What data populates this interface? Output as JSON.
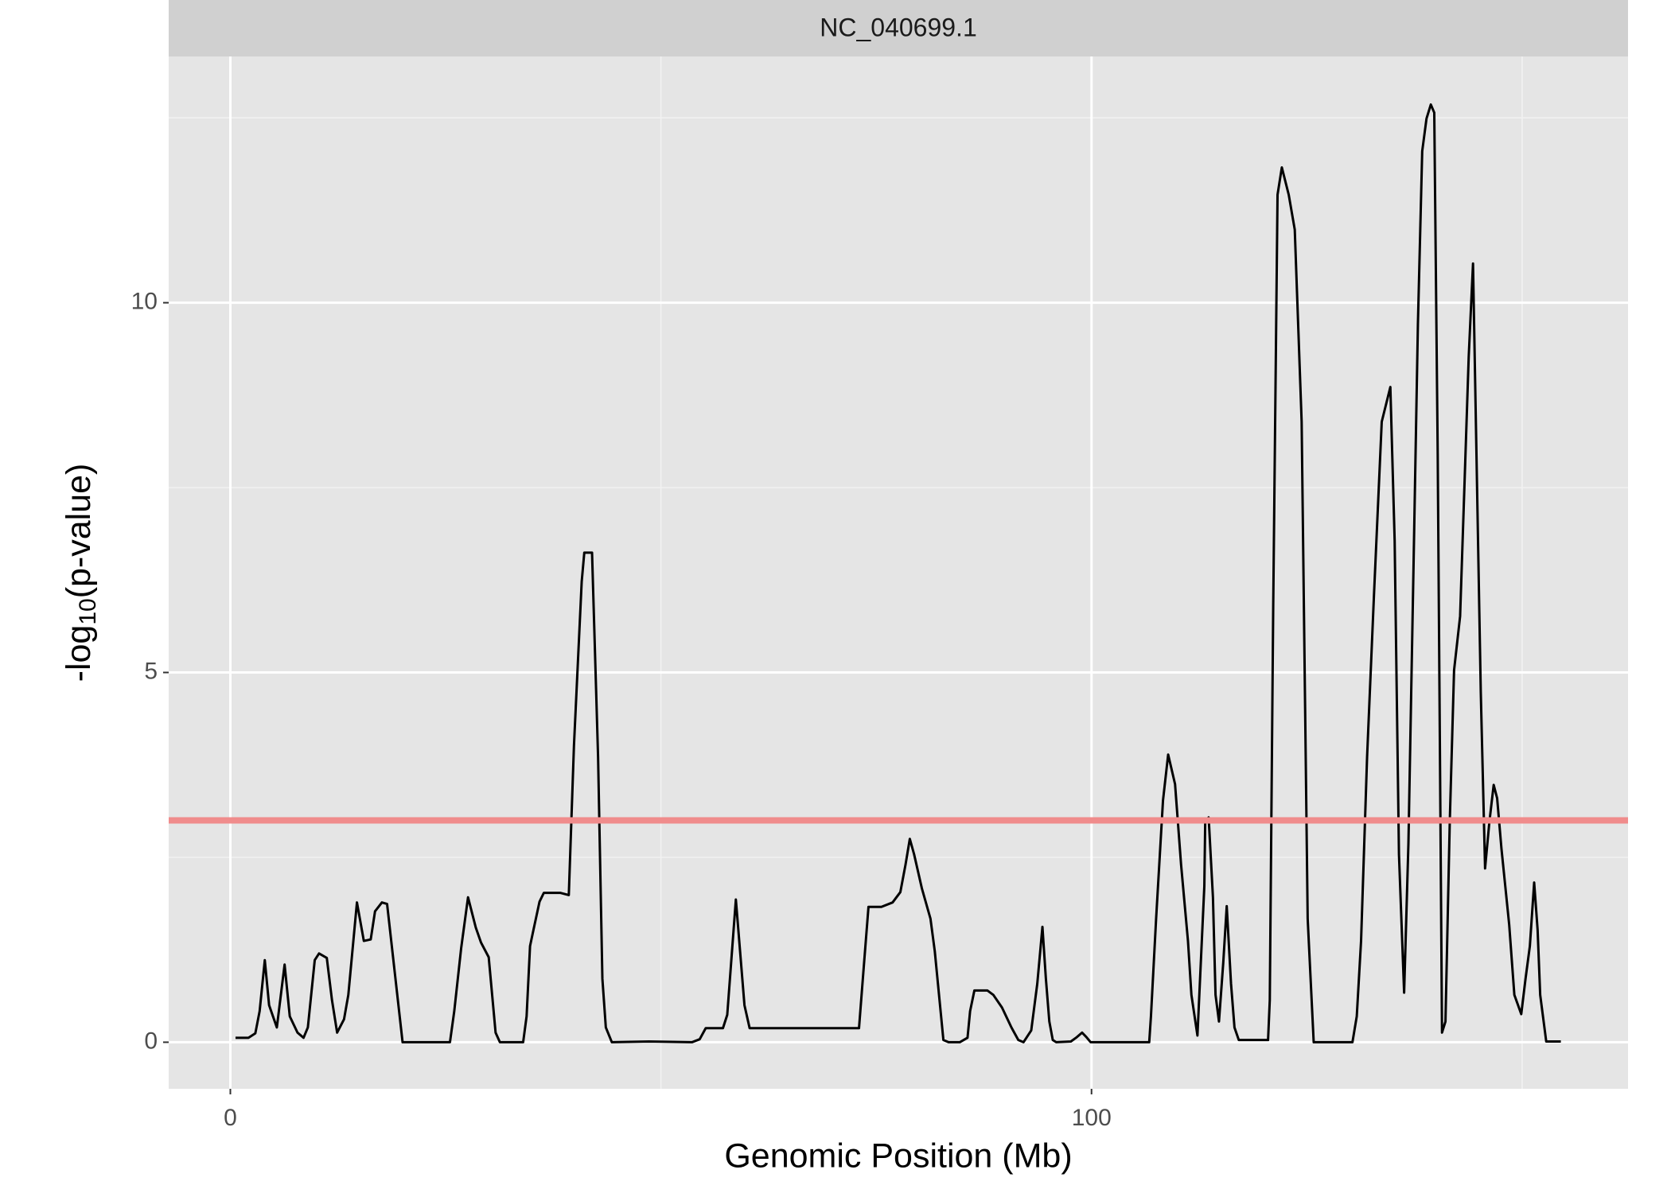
{
  "chart_data": {
    "type": "line",
    "strip_label": "NC_040699.1",
    "xlabel": "Genomic Position (Mb)",
    "ylabel": {
      "prefix": "-log",
      "sub": "10",
      "suffix": "(p-value)"
    },
    "xlim": [
      -7.16,
      162.3
    ],
    "xticks": [
      0,
      100
    ],
    "ylim": [
      -0.63,
      13.33
    ],
    "yticks": [
      0,
      5,
      10
    ],
    "grid": true,
    "threshold": {
      "value": 3,
      "color": "#f08c8c"
    },
    "color": "#000000",
    "x": [
      0.6,
      2.1,
      2.9,
      3.4,
      4.0,
      4.5,
      5.4,
      6.3,
      6.9,
      7.8,
      8.5,
      9.0,
      9.8,
      10.3,
      11.2,
      11.8,
      12.4,
      13.2,
      13.7,
      14.7,
      15.5,
      16.3,
      16.8,
      17.6,
      18.2,
      20.0,
      25.5,
      26.0,
      26.8,
      27.6,
      28.5,
      29.1,
      30.0,
      30.8,
      31.3,
      34.0,
      34.4,
      34.8,
      35.2,
      35.9,
      36.4,
      38.3,
      39.3,
      39.9,
      40.8,
      41.1,
      42.0,
      42.7,
      43.2,
      43.6,
      44.3,
      48.6,
      53.6,
      54.5,
      55.2,
      57.2,
      57.7,
      58.7,
      59.7,
      60.3,
      73.0,
      73.5,
      74.1,
      75.6,
      76.9,
      77.8,
      78.4,
      78.9,
      79.4,
      80.3,
      81.3,
      81.8,
      82.8,
      83.4,
      84.7,
      85.6,
      85.9,
      86.4,
      87.9,
      88.6,
      89.6,
      90.7,
      91.5,
      92.1,
      93.0,
      93.7,
      94.3,
      94.7,
      95.1,
      95.5,
      95.9,
      97.6,
      98.2,
      98.9,
      99.4,
      99.9,
      106.7,
      106.9,
      107.5,
      108.3,
      108.9,
      109.7,
      110.4,
      111.2,
      111.6,
      112.3,
      113.1,
      113.2,
      113.6,
      114.1,
      114.4,
      114.8,
      115.3,
      115.7,
      116.2,
      116.6,
      117.1,
      120.5,
      120.7,
      121.1,
      121.6,
      122.1,
      122.9,
      123.6,
      124.4,
      125.1,
      125.8,
      130.3,
      130.8,
      131.3,
      132.0,
      132.8,
      133.7,
      134.7,
      135.2,
      135.7,
      136.3,
      136.8,
      137.4,
      137.9,
      138.4,
      138.9,
      139.4,
      139.8,
      140.2,
      140.7,
      141.1,
      141.6,
      142.1,
      142.8,
      143.3,
      143.8,
      144.3,
      144.7,
      145.2,
      145.7,
      146.2,
      146.7,
      147.1,
      147.6,
      148.5,
      149.1,
      149.9,
      150.4,
      150.9,
      151.4,
      151.8,
      152.1,
      152.8,
      154.5
    ],
    "values": [
      0.06,
      0.06,
      0.12,
      0.42,
      1.11,
      0.5,
      0.2,
      1.05,
      0.35,
      0.13,
      0.06,
      0.2,
      1.11,
      1.2,
      1.14,
      0.57,
      0.13,
      0.31,
      0.64,
      1.89,
      1.37,
      1.39,
      1.77,
      1.89,
      1.87,
      0,
      0,
      0.42,
      1.27,
      1.96,
      1.55,
      1.35,
      1.15,
      0.13,
      0,
      0,
      0.35,
      1.3,
      1.52,
      1.9,
      2.02,
      2.02,
      1.99,
      4.01,
      6.23,
      6.62,
      6.62,
      3.86,
      0.86,
      0.2,
      0,
      0.01,
      0,
      0.04,
      0.19,
      0.19,
      0.37,
      1.93,
      0.5,
      0.19,
      0.19,
      0.94,
      1.83,
      1.83,
      1.89,
      2.03,
      2.4,
      2.75,
      2.54,
      2.08,
      1.67,
      1.23,
      0.03,
      0,
      0,
      0.06,
      0.42,
      0.7,
      0.7,
      0.64,
      0.47,
      0.2,
      0.03,
      0,
      0.16,
      0.79,
      1.56,
      0.86,
      0.28,
      0.03,
      0,
      0.01,
      0.06,
      0.13,
      0.07,
      0,
      0,
      0.35,
      1.67,
      3.27,
      3.89,
      3.49,
      2.4,
      1.37,
      0.64,
      0.09,
      2.11,
      2.97,
      3.04,
      1.96,
      0.64,
      0.28,
      1.08,
      1.84,
      0.79,
      0.2,
      0.03,
      0.03,
      0.57,
      5.91,
      11.46,
      11.83,
      11.46,
      10.99,
      8.39,
      1.67,
      0,
      0,
      0.35,
      1.37,
      3.86,
      6.05,
      8.39,
      8.86,
      6.78,
      2.54,
      0.67,
      2.69,
      6.49,
      9.71,
      12.05,
      12.49,
      12.68,
      12.57,
      7.95,
      0.13,
      0.28,
      2.98,
      5.03,
      5.76,
      7.51,
      9.27,
      10.53,
      7.95,
      4.74,
      2.35,
      2.98,
      3.48,
      3.3,
      2.62,
      1.59,
      0.64,
      0.38,
      0.86,
      1.3,
      2.16,
      1.52,
      0.64,
      0.01,
      0.01
    ]
  }
}
